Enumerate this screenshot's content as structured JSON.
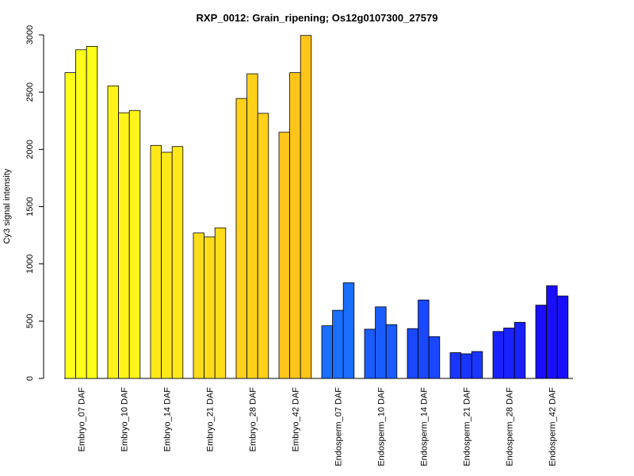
{
  "chart_data": {
    "type": "bar",
    "title": "RXP_0012: Grain_ripening; Os12g0107300_27579",
    "xlabel": "",
    "ylabel": "Cy3 signal intensity",
    "ylim": [
      0,
      3000
    ],
    "yticks": [
      0,
      500,
      1000,
      1500,
      2000,
      2500,
      3000
    ],
    "ytick_labels": [
      "0",
      "500",
      "1000",
      "1500",
      "2000",
      "2500",
      "3000"
    ],
    "grid": false,
    "legend": "none",
    "categories": [
      "Embryo_07 DAF",
      "Embryo_10 DAF",
      "Embryo_14 DAF",
      "Embryo_21 DAF",
      "Embryo_28 DAF",
      "Embryo_42 DAF",
      "Endosperm_07 DAF",
      "Endosperm_10 DAF",
      "Endosperm_14 DAF",
      "Endosperm_21 DAF",
      "Endosperm_28 DAF",
      "Endosperm_42 DAF"
    ],
    "group_colors": [
      "#ffff1a",
      "#fff31a",
      "#ffe81a",
      "#ffdc1a",
      "#ffd11a",
      "#ffc51a",
      "#1a6fff",
      "#1a5cff",
      "#1a48ff",
      "#1a35ff",
      "#1a21ff",
      "#1a0eff"
    ],
    "values": [
      [
        2670,
        2870,
        2900
      ],
      [
        2555,
        2320,
        2340
      ],
      [
        2035,
        1975,
        2025
      ],
      [
        1270,
        1235,
        1315
      ],
      [
        2445,
        2660,
        2315
      ],
      [
        2150,
        2670,
        2995
      ],
      [
        460,
        595,
        835
      ],
      [
        430,
        625,
        470
      ],
      [
        435,
        685,
        365
      ],
      [
        225,
        215,
        235
      ],
      [
        410,
        440,
        490
      ],
      [
        640,
        810,
        720
      ]
    ]
  }
}
